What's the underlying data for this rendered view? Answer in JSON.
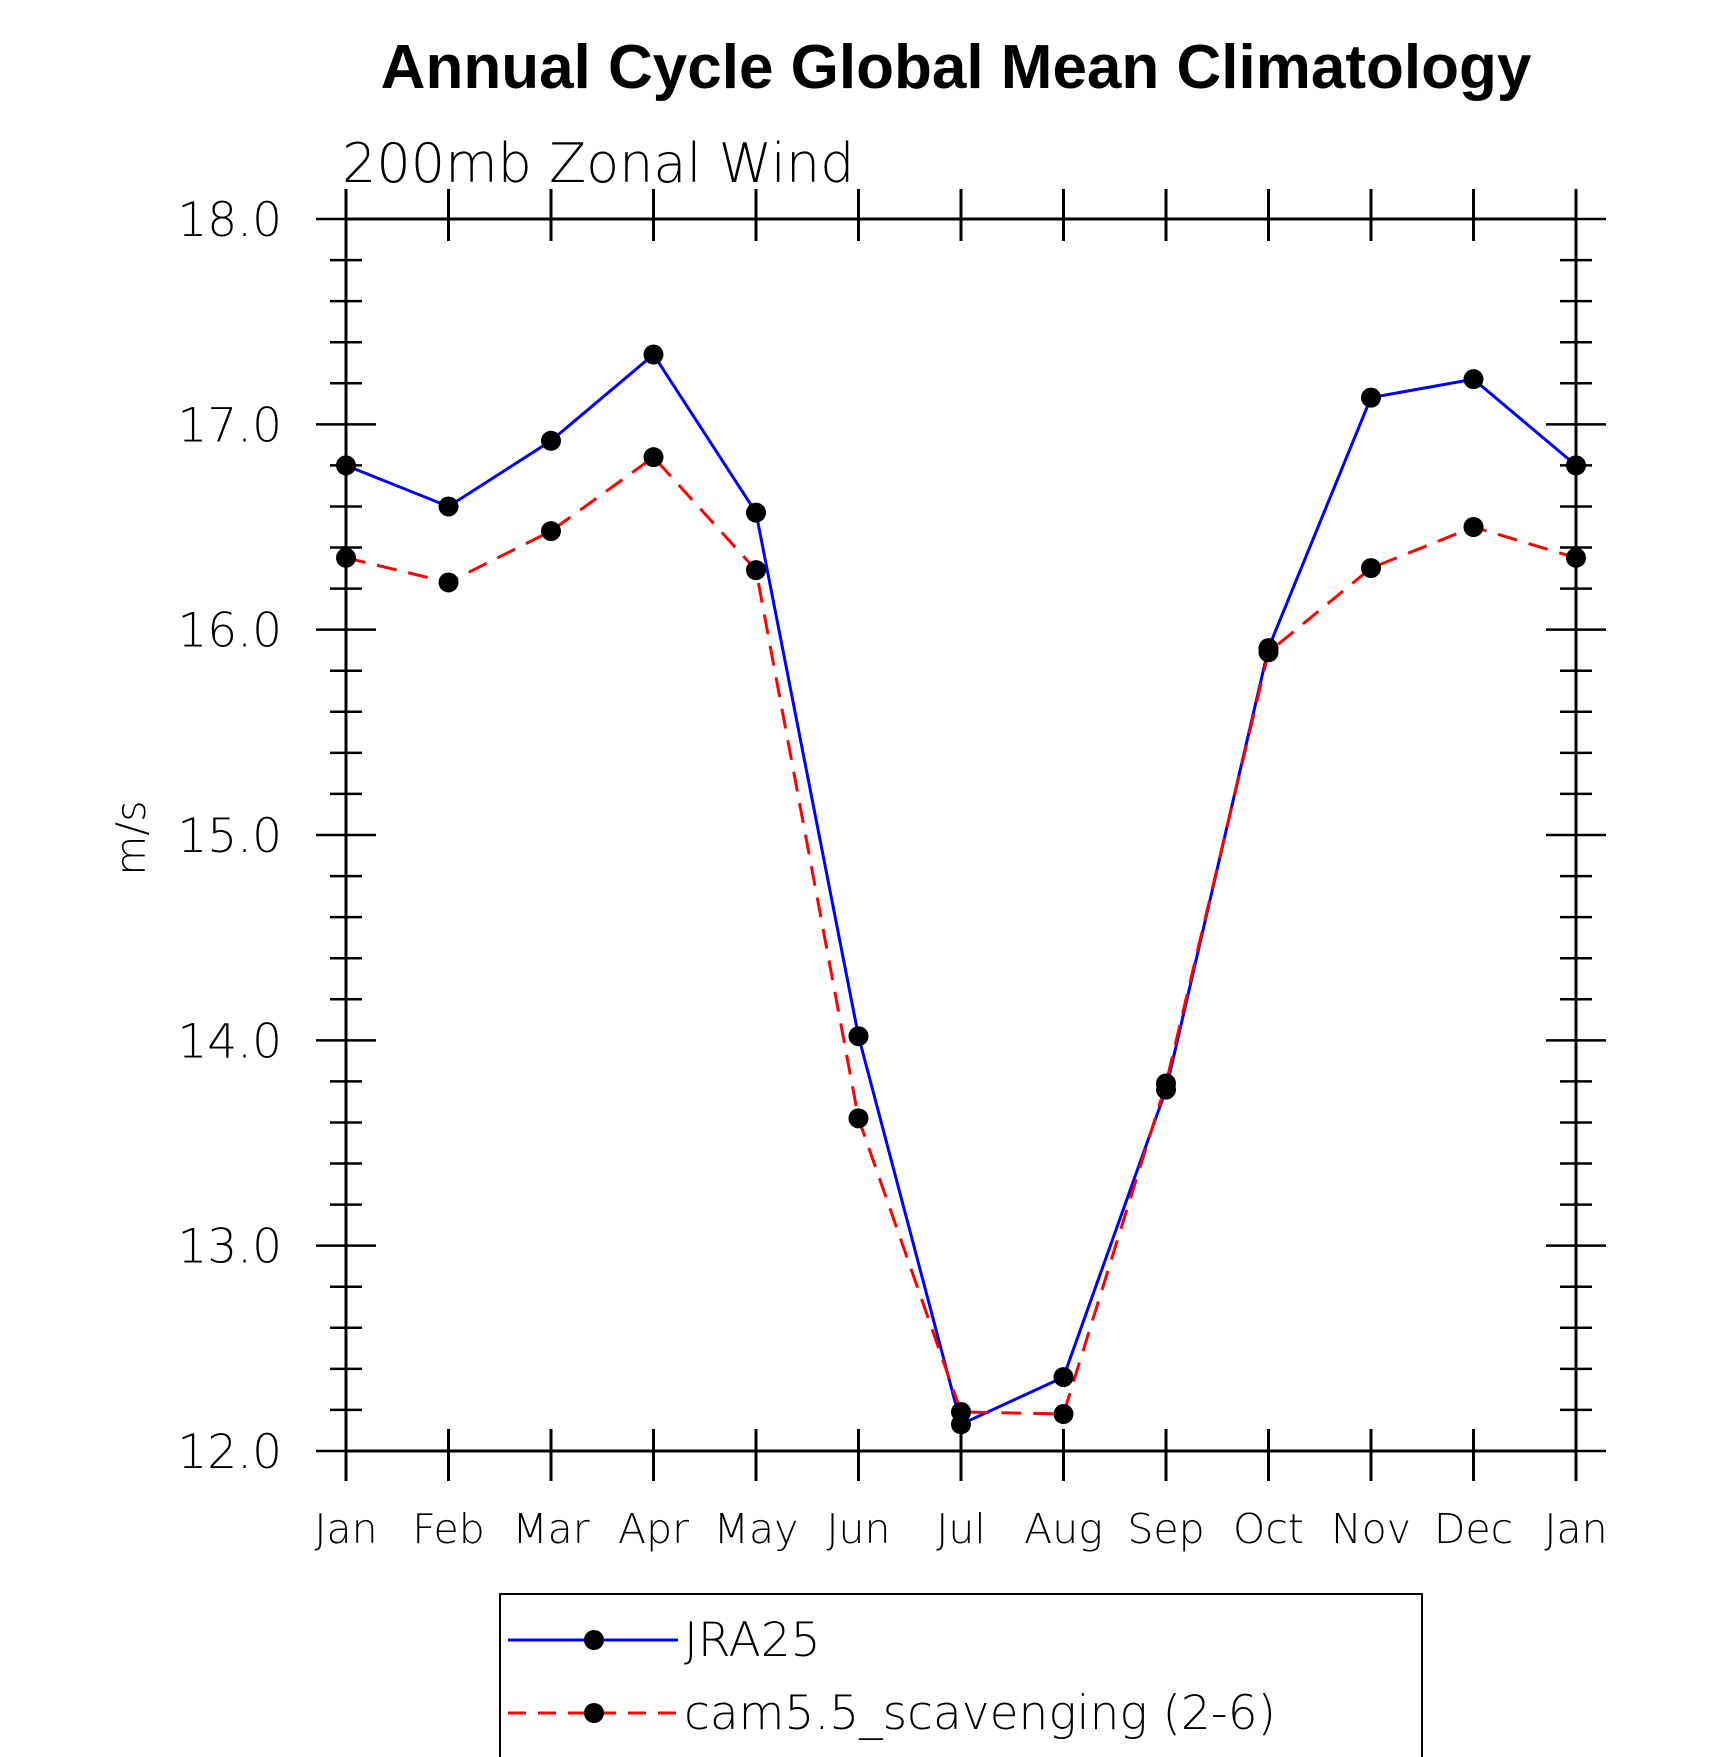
{
  "chart_data": {
    "type": "line",
    "title": "Annual Cycle Global Mean Climatology",
    "subtitle": "200mb Zonal Wind",
    "ylabel": "m/s",
    "xlabel": "",
    "categories": [
      "Jan",
      "Feb",
      "Mar",
      "Apr",
      "May",
      "Jun",
      "Jul",
      "Aug",
      "Sep",
      "Oct",
      "Nov",
      "Dec",
      "Jan"
    ],
    "ylim": [
      12.0,
      18.0
    ],
    "yticks": [
      "12.0",
      "13.0",
      "14.0",
      "15.0",
      "16.0",
      "17.0",
      "18.0"
    ],
    "series": [
      {
        "name": "JRA25",
        "color": "#0000ff",
        "dash": "solid",
        "marker": "filled-circle",
        "values": [
          16.8,
          16.6,
          16.92,
          17.34,
          16.57,
          14.02,
          12.13,
          12.36,
          13.76,
          15.91,
          17.13,
          17.22,
          16.8
        ]
      },
      {
        "name": "cam5.5_scavenging (2-6)",
        "color": "#ff0000",
        "dash": "dashed",
        "marker": "filled-circle",
        "values": [
          16.35,
          16.23,
          16.48,
          16.84,
          16.29,
          13.62,
          12.19,
          12.18,
          13.79,
          15.89,
          16.3,
          16.5,
          16.35
        ]
      }
    ],
    "legend": {
      "position": "bottom-center"
    },
    "grid": false
  }
}
